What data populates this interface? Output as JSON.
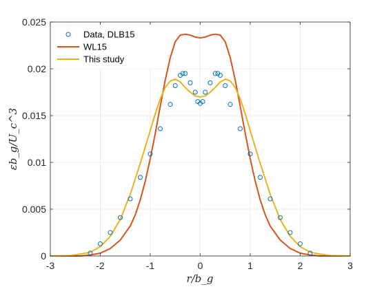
{
  "chart_data": {
    "type": "line",
    "title": "",
    "xlabel": "r/b_g",
    "ylabel": "εb_g/U_c^3",
    "xlim": [
      -3,
      3
    ],
    "ylim": [
      0,
      0.025
    ],
    "xticks": [
      "-3",
      "-2",
      "-1",
      "0",
      "1",
      "2",
      "3"
    ],
    "yticks": [
      "0",
      "0.005",
      "0.01",
      "0.015",
      "0.02",
      "0.025"
    ],
    "grid": true,
    "legend_position": "top-left",
    "series": [
      {
        "name": "Data, DLB15",
        "kind": "scatter",
        "marker": "circle",
        "color": "#0072BD",
        "x": [
          -2.2,
          -2.0,
          -1.8,
          -1.6,
          -1.4,
          -1.2,
          -1.0,
          -0.8,
          -0.6,
          -0.5,
          -0.4,
          -0.35,
          -0.3,
          -0.2,
          -0.1,
          -0.05,
          0.0,
          0.05,
          0.1,
          0.2,
          0.3,
          0.35,
          0.4,
          0.5,
          0.6,
          0.8,
          1.0,
          1.2,
          1.4,
          1.6,
          1.8,
          2.0,
          2.2
        ],
        "y": [
          0.0003,
          0.0013,
          0.0025,
          0.0041,
          0.0061,
          0.0084,
          0.0109,
          0.0136,
          0.0162,
          0.0182,
          0.0193,
          0.0195,
          0.0195,
          0.0185,
          0.0175,
          0.0165,
          0.0163,
          0.0165,
          0.0175,
          0.0185,
          0.0195,
          0.0195,
          0.0193,
          0.0182,
          0.0162,
          0.0136,
          0.0109,
          0.0084,
          0.0061,
          0.0041,
          0.0025,
          0.0013,
          0.0003
        ]
      },
      {
        "name": "WL15",
        "kind": "line",
        "color": "#D95319",
        "x": [
          -3.0,
          -2.6,
          -2.4,
          -2.2,
          -2.0,
          -1.8,
          -1.6,
          -1.4,
          -1.3,
          -1.2,
          -1.1,
          -1.0,
          -0.9,
          -0.8,
          -0.7,
          -0.6,
          -0.5,
          -0.4,
          -0.3,
          -0.2,
          -0.1,
          0.0,
          0.1,
          0.2,
          0.3,
          0.4,
          0.5,
          0.6,
          0.7,
          0.8,
          0.9,
          1.0,
          1.1,
          1.2,
          1.3,
          1.4,
          1.6,
          1.8,
          2.0,
          2.2,
          2.4,
          2.6,
          3.0
        ],
        "y": [
          0.0,
          0.0,
          0.0,
          0.0001,
          0.0003,
          0.0008,
          0.0017,
          0.0032,
          0.0044,
          0.006,
          0.008,
          0.0104,
          0.0131,
          0.016,
          0.0188,
          0.0212,
          0.0229,
          0.0236,
          0.0237,
          0.0236,
          0.0234,
          0.0233,
          0.0234,
          0.0236,
          0.0237,
          0.0236,
          0.0229,
          0.0212,
          0.0188,
          0.016,
          0.0131,
          0.0104,
          0.008,
          0.006,
          0.0044,
          0.0032,
          0.0017,
          0.0008,
          0.0003,
          0.0001,
          0.0,
          0.0,
          0.0
        ]
      },
      {
        "name": "This study",
        "kind": "line",
        "color": "#EDB120",
        "x": [
          -3.0,
          -2.6,
          -2.4,
          -2.2,
          -2.0,
          -1.8,
          -1.6,
          -1.4,
          -1.2,
          -1.0,
          -0.9,
          -0.8,
          -0.7,
          -0.6,
          -0.5,
          -0.4,
          -0.3,
          -0.2,
          -0.1,
          0.0,
          0.1,
          0.2,
          0.3,
          0.4,
          0.5,
          0.6,
          0.7,
          0.8,
          0.9,
          1.0,
          1.2,
          1.4,
          1.6,
          1.8,
          2.0,
          2.2,
          2.4,
          2.6,
          3.0
        ],
        "y": [
          0.0,
          5e-05,
          0.0002,
          0.0004,
          0.001,
          0.0021,
          0.0039,
          0.0066,
          0.0099,
          0.0134,
          0.0152,
          0.0168,
          0.018,
          0.0187,
          0.0189,
          0.0186,
          0.018,
          0.0175,
          0.0171,
          0.017,
          0.0171,
          0.0175,
          0.018,
          0.0186,
          0.0189,
          0.0187,
          0.018,
          0.0168,
          0.0152,
          0.0134,
          0.0099,
          0.0066,
          0.0039,
          0.0021,
          0.001,
          0.0004,
          0.0002,
          5e-05,
          0.0
        ]
      }
    ]
  }
}
